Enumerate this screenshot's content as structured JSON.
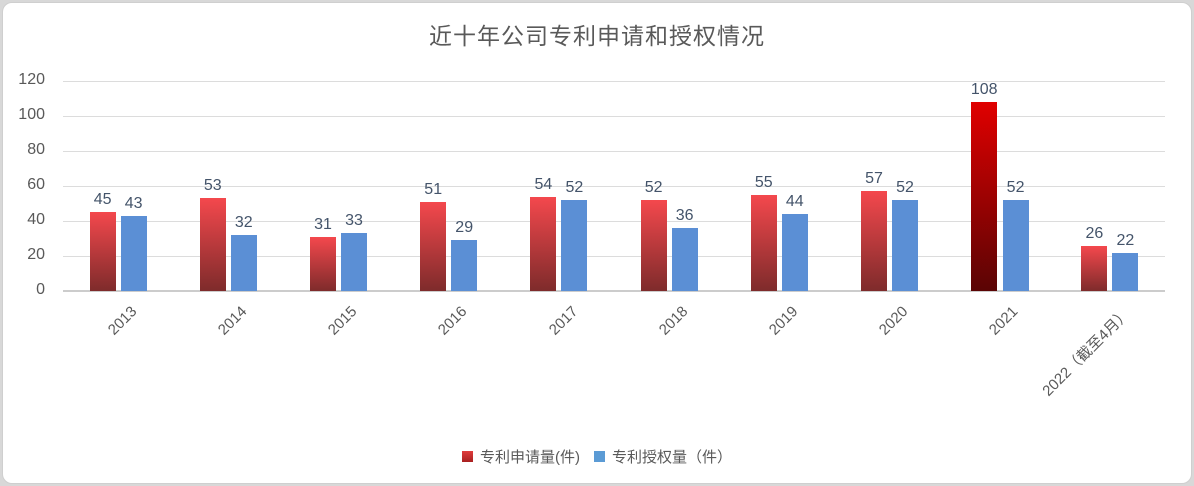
{
  "chart_data": {
    "type": "bar",
    "title": "近十年公司专利申请和授权情况",
    "categories": [
      "2013",
      "2014",
      "2015",
      "2016",
      "2017",
      "2018",
      "2019",
      "2020",
      "2021",
      "2022（截至4月）"
    ],
    "series": [
      {
        "name": "专利申请量(件)",
        "values": [
          45,
          53,
          31,
          51,
          54,
          52,
          55,
          57,
          108,
          26
        ]
      },
      {
        "name": "专利授权量（件）",
        "values": [
          43,
          32,
          33,
          29,
          52,
          36,
          44,
          52,
          52,
          22
        ]
      }
    ],
    "ylim": [
      0,
      120
    ],
    "ytick_step": 20,
    "yticks": [
      0,
      20,
      40,
      60,
      80,
      100,
      120
    ],
    "grid": true,
    "legend_position": "bottom",
    "highlight": {
      "series": 0,
      "category_index": 8
    }
  },
  "colors": {
    "apply_bar_top": "#f4484d",
    "apply_bar_bottom": "#7e2b2b",
    "apply_highlight_top": "#e00000",
    "apply_highlight_bottom": "#5a0404",
    "grant_bar": "#5b8fd5",
    "legend_apply_top": "#e03c3c",
    "legend_apply_bottom": "#a82020",
    "legend_grant": "#5b9bd5",
    "gridline": "#dcdcdc",
    "axis_text": "#595959",
    "data_label_text": "#44546a",
    "title_text": "#595959",
    "chart_background": "#ffffff",
    "frame_border": "#cfcfcf",
    "page_background": "#d8d8d8"
  }
}
